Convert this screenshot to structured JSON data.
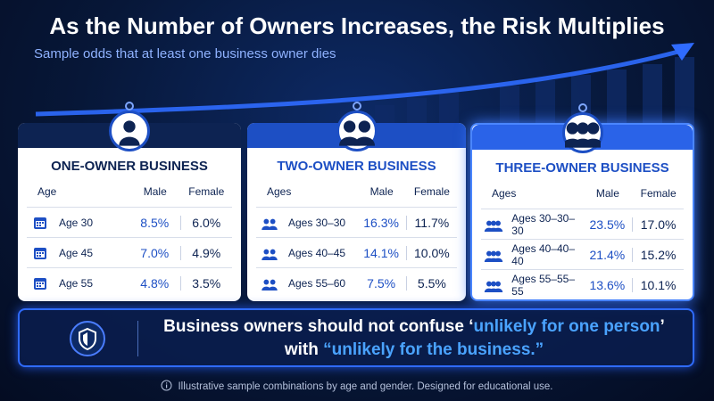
{
  "header": {
    "title": "As the Number of Owners Increases, the Risk Multiplies",
    "subtitle": "Sample odds that at least one business owner dies"
  },
  "cards": [
    {
      "title": "ONE-OWNER BUSINESS",
      "columns": [
        "Age",
        "Male",
        "Female"
      ],
      "rows": [
        {
          "label": "Age 30",
          "male": "8.5%",
          "female": "6.0%"
        },
        {
          "label": "Age 45",
          "male": "7.0%",
          "female": "4.9%"
        },
        {
          "label": "Age 55",
          "male": "4.8%",
          "female": "3.5%"
        }
      ]
    },
    {
      "title": "TWO-OWNER BUSINESS",
      "columns": [
        "Ages",
        "Male",
        "Female"
      ],
      "rows": [
        {
          "label": "Ages 30–30",
          "male": "16.3%",
          "female": "11.7%"
        },
        {
          "label": "Ages 40–45",
          "male": "14.1%",
          "female": "10.0%"
        },
        {
          "label": "Ages 55–60",
          "male": "7.5%",
          "female": "5.5%"
        }
      ]
    },
    {
      "title": "THREE-OWNER BUSINESS",
      "columns": [
        "Ages",
        "Male",
        "Female"
      ],
      "rows": [
        {
          "label": "Ages 30–30–30",
          "male": "23.5%",
          "female": "17.0%"
        },
        {
          "label": "Ages 40–40–40",
          "male": "21.4%",
          "female": "15.2%"
        },
        {
          "label": "Ages 55–55–55",
          "male": "13.6%",
          "female": "10.1%"
        }
      ]
    }
  ],
  "callout": {
    "line1_plain": "Business owners should not confuse ‘",
    "line1_highlight": "unlikely for one person",
    "line1_end": "’",
    "line2_plain": "with ",
    "line2_highlight": "“unlikely for the business.”"
  },
  "footer": {
    "text": "Illustrative sample combinations by age and gender. Designed for educational use."
  }
}
